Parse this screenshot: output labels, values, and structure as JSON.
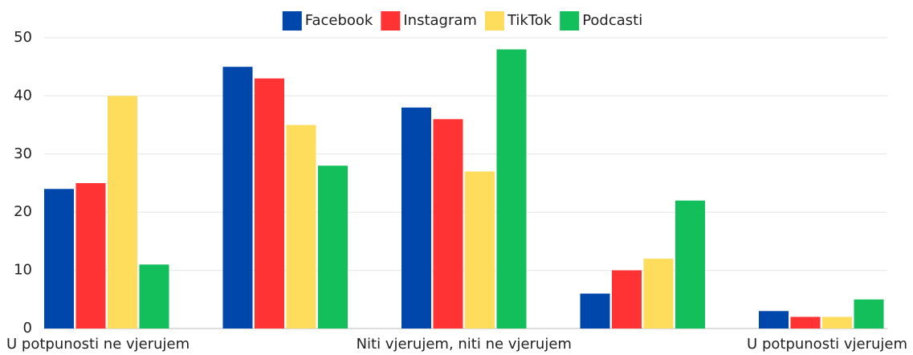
{
  "chart_data": {
    "type": "bar",
    "categories": [
      "U potpunosti ne vjerujem",
      null,
      "Niti vjerujem, niti ne vjerujem",
      null,
      "U potpunosti vjerujem"
    ],
    "series": [
      {
        "name": "Facebook",
        "color": "#0047ab",
        "values": [
          24,
          45,
          38,
          6,
          3
        ]
      },
      {
        "name": "Instagram",
        "color": "#ff3333",
        "values": [
          25,
          43,
          36,
          10,
          2
        ]
      },
      {
        "name": "TikTok",
        "color": "#ffdd5c",
        "values": [
          40,
          35,
          27,
          12,
          2
        ]
      },
      {
        "name": "Podcasti",
        "color": "#12bf5a",
        "values": [
          11,
          28,
          48,
          22,
          5
        ]
      }
    ],
    "ylim": [
      0,
      50
    ],
    "yticks": [
      0,
      10,
      20,
      30,
      40,
      50
    ],
    "grid": true,
    "legend": "top"
  }
}
